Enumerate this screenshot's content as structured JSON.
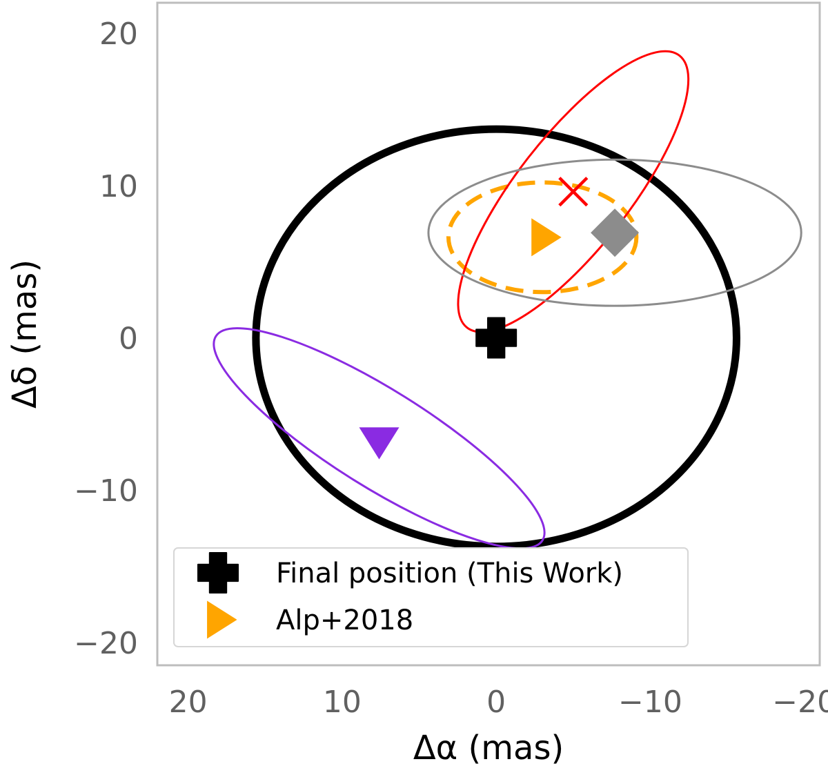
{
  "chart_data": {
    "type": "scatter",
    "title": "",
    "xlabel": "Δα (mas)",
    "ylabel": "Δδ (mas)",
    "xlim": [
      22,
      -21
    ],
    "ylim": [
      -21.5,
      22
    ],
    "x_inverted": true,
    "grid": false,
    "xticks": [
      20,
      10,
      0,
      -10,
      -20
    ],
    "yticks": [
      20,
      10,
      0,
      -10,
      -20
    ],
    "xtick_labels": [
      "20",
      "10",
      "0",
      "−10",
      "−20"
    ],
    "ytick_labels": [
      "20",
      "10",
      "0",
      "−10",
      "−20"
    ],
    "legend_position": "lower-left",
    "legend": [
      {
        "label": "Final position (This Work)",
        "marker": "plus",
        "color": "#000000"
      },
      {
        "label": "Alp+2018",
        "marker": "triangle-right",
        "color": "#ffa500"
      }
    ],
    "series": [
      {
        "marker": "plus",
        "color": "#000000",
        "x": 0,
        "y": 0,
        "ellipse": {
          "semi_x": 15.6,
          "semi_y": 13.7,
          "angle": 0,
          "style": "solid",
          "width": "thick"
        }
      },
      {
        "name": "Alp+2018",
        "marker": "triangle-right",
        "color": "#ffa500",
        "x": -3,
        "y": 6.6,
        "ellipse": {
          "semi_x": 6.1,
          "semi_y": 3.6,
          "angle": 0,
          "style": "dashed"
        }
      },
      {
        "marker": "x",
        "color": "#ff0000",
        "x": -5,
        "y": 9.6,
        "ellipse": {
          "semi_x": 11.2,
          "semi_y": 3.7,
          "angle": -52,
          "style": "solid"
        }
      },
      {
        "marker": "diamond",
        "color": "#8c8c8c",
        "x": -7.7,
        "y": 6.9,
        "ellipse": {
          "semi_x": 12.1,
          "semi_y": 4.8,
          "angle": 0,
          "style": "solid"
        }
      },
      {
        "marker": "triangle-down",
        "color": "#8a2be2",
        "x": 7.6,
        "y": -6.6,
        "ellipse": {
          "semi_x": 12.5,
          "semi_y": 3.2,
          "angle": 32,
          "style": "solid"
        }
      }
    ]
  }
}
